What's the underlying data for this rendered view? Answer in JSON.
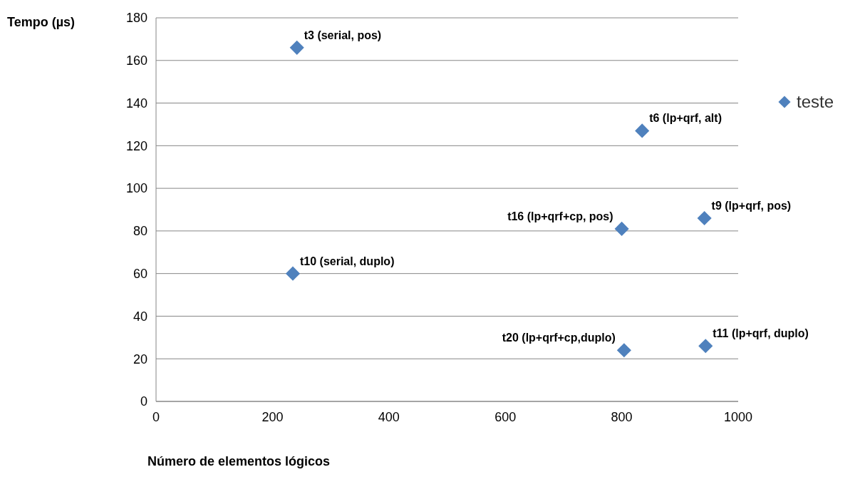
{
  "chart_data": {
    "type": "scatter",
    "xlabel": "Número de elementos lógicos",
    "ylabel": "Tempo (µs)",
    "xlim": [
      0,
      1000
    ],
    "xticks": [
      0,
      200,
      400,
      600,
      800,
      1000
    ],
    "ylim": [
      0,
      180
    ],
    "yticks": [
      0,
      20,
      40,
      60,
      80,
      100,
      120,
      140,
      160,
      180
    ],
    "grid": "y",
    "legend": "right",
    "marker": "diamond",
    "series": [
      {
        "name": "teste",
        "color": "#4f81bd",
        "x": [
          242,
          835,
          800,
          942,
          235,
          804,
          944
        ],
        "values": [
          166,
          127,
          81,
          86,
          60,
          24,
          26
        ]
      }
    ],
    "annotations": [
      {
        "text": "t3 (serial, pos)",
        "x": 242,
        "y": 166
      },
      {
        "text": "t6 (lp+qrf, alt)",
        "x": 835,
        "y": 127
      },
      {
        "text": "t16 (lp+qrf+cp, pos)",
        "x": 800,
        "y": 81
      },
      {
        "text": "t9 (lp+qrf, pos)",
        "x": 942,
        "y": 86
      },
      {
        "text": "t10 (serial, duplo)",
        "x": 235,
        "y": 60
      },
      {
        "text": "t20 (lp+qrf+cp,duplo)",
        "x": 804,
        "y": 24
      },
      {
        "text": "t11 (lp+qrf, duplo)",
        "x": 944,
        "y": 26
      }
    ]
  }
}
